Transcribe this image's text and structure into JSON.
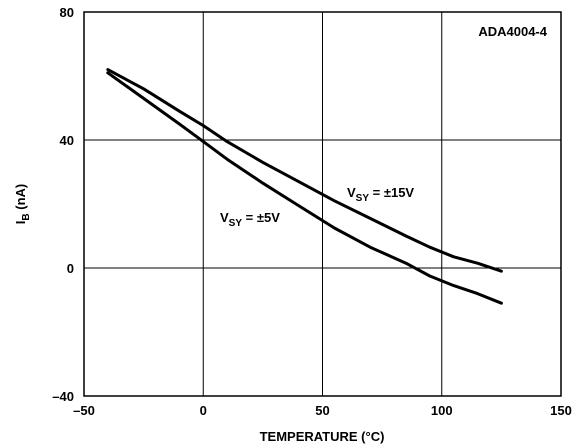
{
  "chart_data": {
    "type": "line",
    "title": "",
    "xlabel": "TEMPERATURE (°C)",
    "ylabel_main": "I",
    "ylabel_sub": "B",
    "ylabel_rest": " (nA)",
    "xlim": [
      -50,
      150
    ],
    "ylim": [
      -40,
      80
    ],
    "xticks": [
      -50,
      0,
      50,
      100,
      150
    ],
    "xtick_labels": [
      "–50",
      "0",
      "50",
      "100",
      "150"
    ],
    "yticks": [
      -40,
      0,
      40,
      80
    ],
    "ytick_labels": [
      "–40",
      "0",
      "40",
      "80"
    ],
    "grid": true,
    "legend": "none",
    "annotations": [
      {
        "text_main": "ADA4004-4",
        "text_sub": "",
        "text_rest": ""
      },
      {
        "text_main": "V",
        "text_sub": "SY",
        "text_rest": " = ±15V"
      },
      {
        "text_main": "V",
        "text_sub": "SY",
        "text_rest": " = ±5V"
      }
    ],
    "series": [
      {
        "label_annotation": 1,
        "x": [
          -40,
          -25,
          -10,
          0,
          10,
          25,
          40,
          55,
          70,
          85,
          95,
          105,
          115,
          125
        ],
        "y": [
          62,
          56,
          49,
          44.5,
          39.5,
          33,
          27,
          21,
          15.5,
          10,
          6.5,
          3.5,
          1.5,
          -1
        ]
      },
      {
        "label_annotation": 2,
        "x": [
          -40,
          -25,
          -10,
          0,
          10,
          25,
          40,
          55,
          70,
          85,
          95,
          105,
          115,
          125
        ],
        "y": [
          61,
          53,
          45,
          39.5,
          34,
          26.5,
          19.5,
          12.5,
          6.5,
          1.5,
          -2.5,
          -5.5,
          -8,
          -11
        ]
      }
    ]
  }
}
